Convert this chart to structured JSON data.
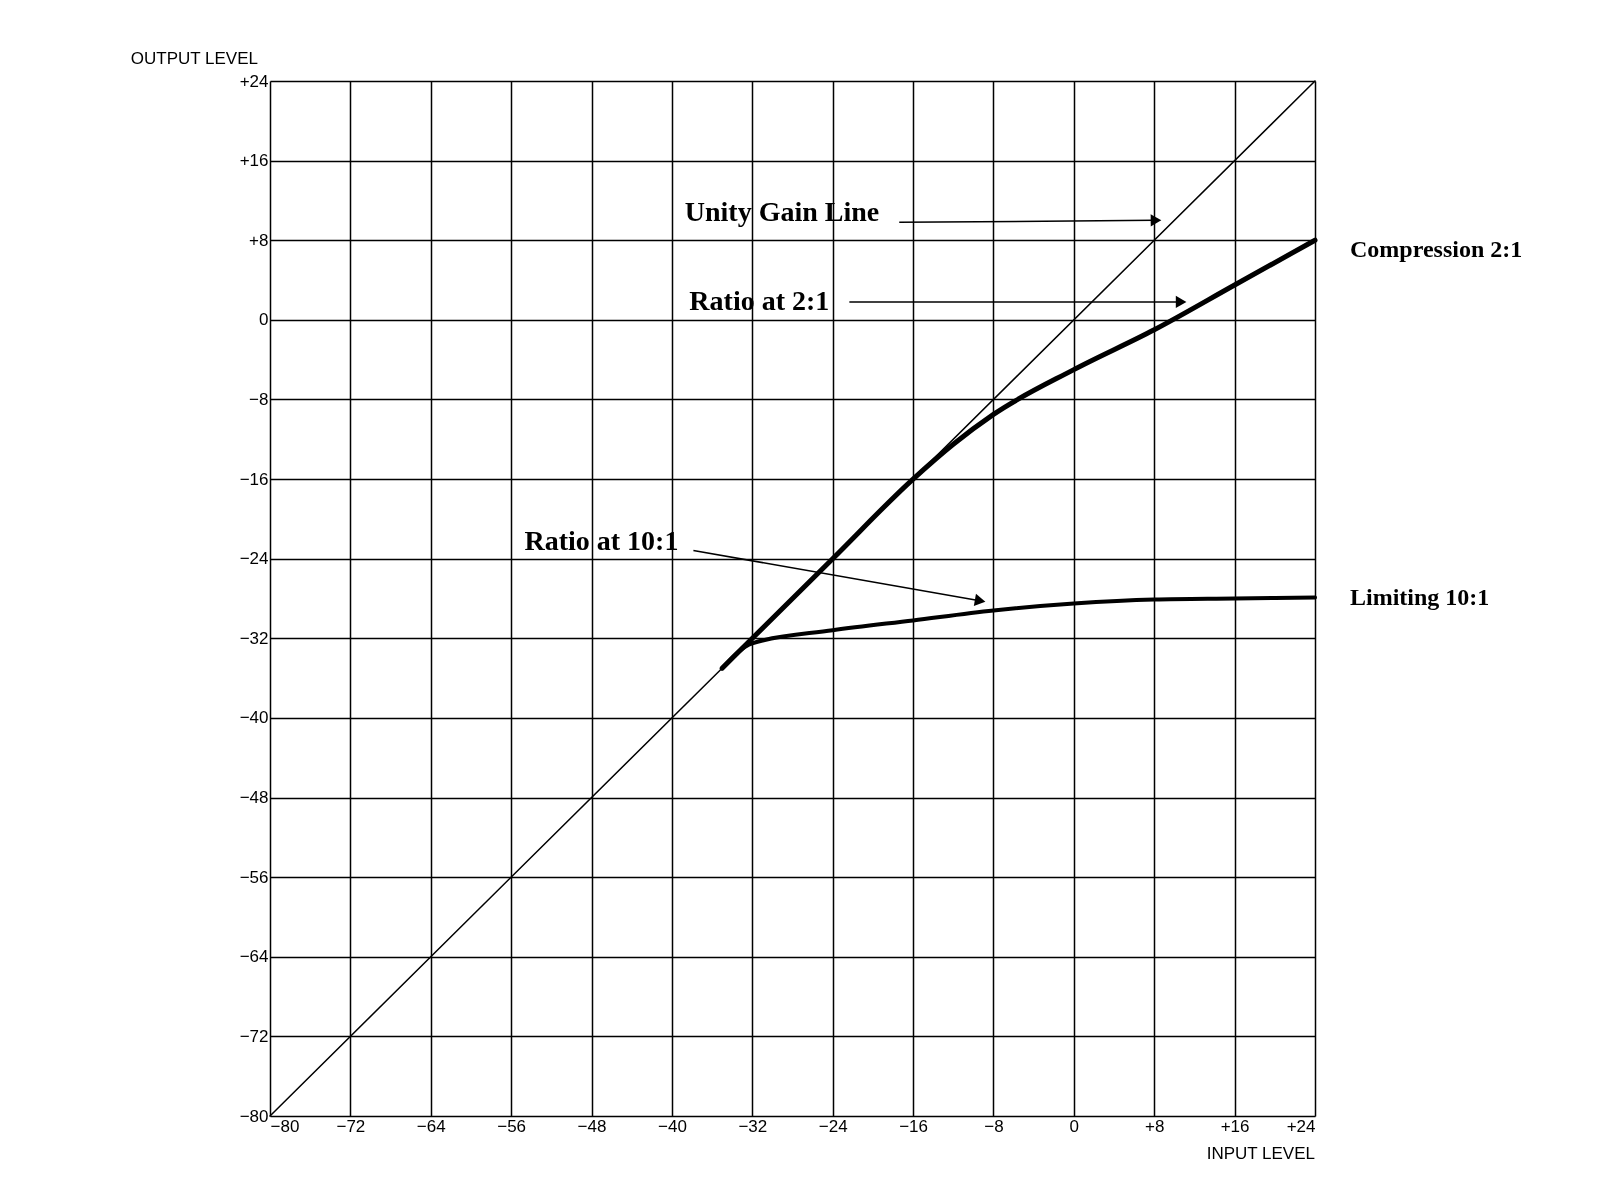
{
  "chart_data": {
    "type": "line",
    "xlabel": "INPUT LEVEL",
    "ylabel": "OUTPUT LEVEL",
    "xlim": [
      -80,
      24
    ],
    "ylim": [
      -80,
      24
    ],
    "xticks": [
      -80,
      -72,
      -64,
      -56,
      -48,
      -40,
      -32,
      -24,
      -16,
      -8,
      0,
      {
        "value": 8,
        "label": "+8"
      },
      {
        "value": 16,
        "label": "+16"
      },
      {
        "value": 24,
        "label": "+24"
      }
    ],
    "yticks": [
      -80,
      -72,
      -64,
      -56,
      -48,
      -40,
      -32,
      -24,
      -16,
      -8,
      0,
      {
        "value": 8,
        "label": "+8"
      },
      {
        "value": 16,
        "label": "+16"
      },
      {
        "value": 24,
        "label": "+24"
      }
    ],
    "grid": true,
    "marker": "none",
    "line_style": "solid",
    "series": [
      {
        "color": "#000000",
        "x": [
          -80,
          24
        ],
        "values": [
          -80,
          24
        ]
      },
      {
        "name": "Compression 2:1",
        "color": "#000000",
        "x": [
          -35,
          -24,
          -16,
          -12,
          -8,
          0,
          8,
          16,
          24
        ],
        "values": [
          -35,
          -24,
          -16,
          -12.5,
          -9.5,
          -5,
          -1,
          3.5,
          8
        ]
      },
      {
        "name": "Limiting 10:1",
        "color": "#000000",
        "x": [
          -35,
          -32,
          -24,
          -16,
          -8,
          0,
          8,
          16,
          24
        ],
        "values": [
          -35,
          -32.5,
          -31.2,
          -30.2,
          -29.2,
          -28.5,
          -28.1,
          -28,
          -27.9
        ]
      }
    ],
    "annotations": [
      {
        "text": "Unity Gain Line",
        "x": 8,
        "y": 10
      },
      {
        "text": "Ratio at 2:1",
        "x": 10.5,
        "y": 1.8
      },
      {
        "text": "Ratio at 10:1",
        "x": -9.5,
        "y": -28.2
      }
    ]
  }
}
